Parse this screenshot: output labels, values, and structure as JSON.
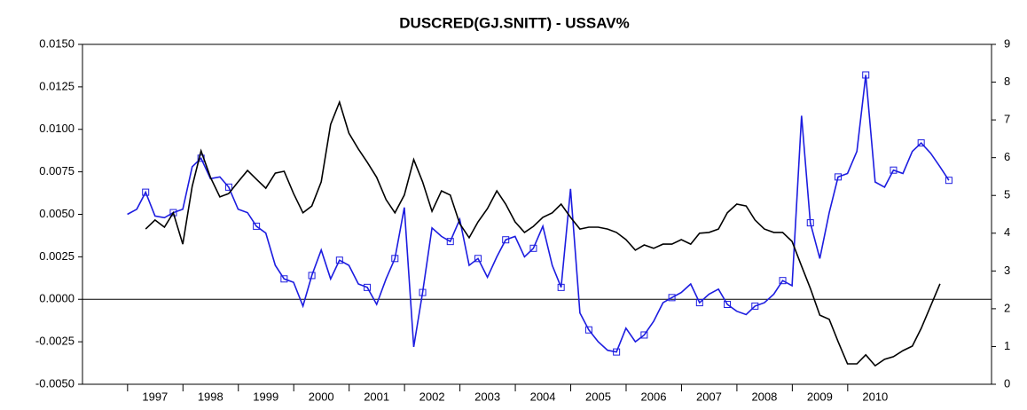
{
  "chart_data": {
    "type": "line",
    "title": "DUSCRED(GJ.SNITT) - USSAV%",
    "x": [
      1996.5,
      1996.67,
      1996.83,
      1997.0,
      1997.17,
      1997.33,
      1997.5,
      1997.67,
      1997.83,
      1998.0,
      1998.17,
      1998.33,
      1998.5,
      1998.67,
      1998.83,
      1999.0,
      1999.17,
      1999.33,
      1999.5,
      1999.67,
      1999.83,
      2000.0,
      2000.17,
      2000.33,
      2000.5,
      2000.67,
      2000.83,
      2001.0,
      2001.17,
      2001.33,
      2001.5,
      2001.67,
      2001.83,
      2002.0,
      2002.17,
      2002.33,
      2002.5,
      2002.67,
      2002.83,
      2003.0,
      2003.17,
      2003.33,
      2003.5,
      2003.67,
      2003.83,
      2004.0,
      2004.17,
      2004.33,
      2004.5,
      2004.67,
      2004.83,
      2005.0,
      2005.17,
      2005.33,
      2005.5,
      2005.67,
      2005.83,
      2006.0,
      2006.17,
      2006.33,
      2006.5,
      2006.67,
      2006.83,
      2007.0,
      2007.17,
      2007.33,
      2007.5,
      2007.67,
      2007.83,
      2008.0,
      2008.17,
      2008.33,
      2008.5,
      2008.67,
      2008.83,
      2009.0,
      2009.17,
      2009.33,
      2009.5,
      2009.67,
      2009.83,
      2010.0,
      2010.17,
      2010.33,
      2010.5,
      2010.67,
      2010.83,
      2011.0,
      2011.17,
      2011.33
    ],
    "series": [
      {
        "color": "#1c1ce0",
        "marker": "square",
        "marker_every": 3,
        "axis": "y",
        "values": [
          0.005,
          0.0053,
          0.0063,
          0.0049,
          0.0048,
          0.0051,
          0.0053,
          0.0078,
          0.0083,
          0.0071,
          0.0072,
          0.0066,
          0.0053,
          0.0051,
          0.0043,
          0.0039,
          0.002,
          0.0012,
          0.001,
          -0.0004,
          0.0014,
          0.0029,
          0.0012,
          0.0023,
          0.002,
          0.0009,
          0.0007,
          -0.0003,
          0.0012,
          0.0024,
          0.0054,
          -0.0028,
          0.0004,
          0.0042,
          0.0037,
          0.0034,
          0.0047,
          0.002,
          0.0024,
          0.0013,
          0.0025,
          0.0035,
          0.0037,
          0.0025,
          0.003,
          0.0043,
          0.002,
          0.0007,
          0.0065,
          -0.0008,
          -0.0018,
          -0.0025,
          -0.003,
          -0.0031,
          -0.0017,
          -0.0025,
          -0.0021,
          -0.0013,
          -0.0002,
          0.0001,
          0.0004,
          0.0009,
          -0.0002,
          0.0003,
          0.0006,
          -0.0003,
          -0.0007,
          -0.0009,
          -0.0004,
          -0.0002,
          0.0003,
          0.0011,
          0.0008,
          0.0108,
          0.0045,
          0.0024,
          0.0051,
          0.0072,
          0.0074,
          0.0087,
          0.0132,
          0.0069,
          0.0066,
          0.0076,
          0.0074,
          0.0087,
          0.0092,
          0.0086,
          0.0078,
          0.007
        ]
      },
      {
        "color": "#000000",
        "axis": "y2",
        "values": [
          null,
          null,
          4.11,
          4.35,
          4.16,
          4.54,
          3.71,
          5.24,
          6.18,
          5.48,
          4.96,
          5.05,
          5.36,
          5.66,
          5.43,
          5.19,
          5.59,
          5.64,
          5.05,
          4.54,
          4.72,
          5.36,
          6.88,
          7.47,
          6.65,
          6.23,
          5.88,
          5.48,
          4.89,
          4.54,
          5.01,
          5.95,
          5.36,
          4.58,
          5.12,
          5.01,
          4.25,
          3.88,
          4.3,
          4.65,
          5.12,
          4.77,
          4.3,
          4.02,
          4.18,
          4.42,
          4.54,
          4.77,
          4.42,
          4.11,
          4.16,
          4.16,
          4.11,
          4.02,
          3.83,
          3.55,
          3.69,
          3.6,
          3.71,
          3.71,
          3.83,
          3.71,
          4.0,
          4.02,
          4.11,
          4.54,
          4.77,
          4.72,
          4.35,
          4.11,
          4.02,
          4.02,
          3.78,
          3.13,
          2.54,
          1.83,
          1.72,
          1.13,
          0.54,
          0.54,
          0.78,
          0.49,
          0.66,
          0.73,
          0.89,
          1.01,
          1.48,
          2.07,
          2.66,
          null
        ]
      }
    ],
    "xlim": [
      1995.69,
      2012.1
    ],
    "xticks": [
      1997,
      1998,
      1999,
      2000,
      2001,
      2002,
      2003,
      2004,
      2005,
      2006,
      2007,
      2008,
      2009,
      2010
    ],
    "ylim": [
      -0.005,
      0.015
    ],
    "yticks": [
      {
        "value": -0.005,
        "label": "-0.0050"
      },
      {
        "value": -0.0025,
        "label": "-0.0025"
      },
      {
        "value": 0,
        "label": "0.0000"
      },
      {
        "value": 0.0025,
        "label": "0.0025"
      },
      {
        "value": 0.005,
        "label": "0.0050"
      },
      {
        "value": 0.0075,
        "label": "0.0075"
      },
      {
        "value": 0.01,
        "label": "0.0100"
      },
      {
        "value": 0.0125,
        "label": "0.0125"
      },
      {
        "value": 0.015,
        "label": "0.0150"
      }
    ],
    "y2lim": [
      0,
      9
    ],
    "y2ticks": [
      0,
      1,
      2,
      3,
      4,
      5,
      6,
      7,
      8,
      9
    ],
    "zero_line": true
  }
}
